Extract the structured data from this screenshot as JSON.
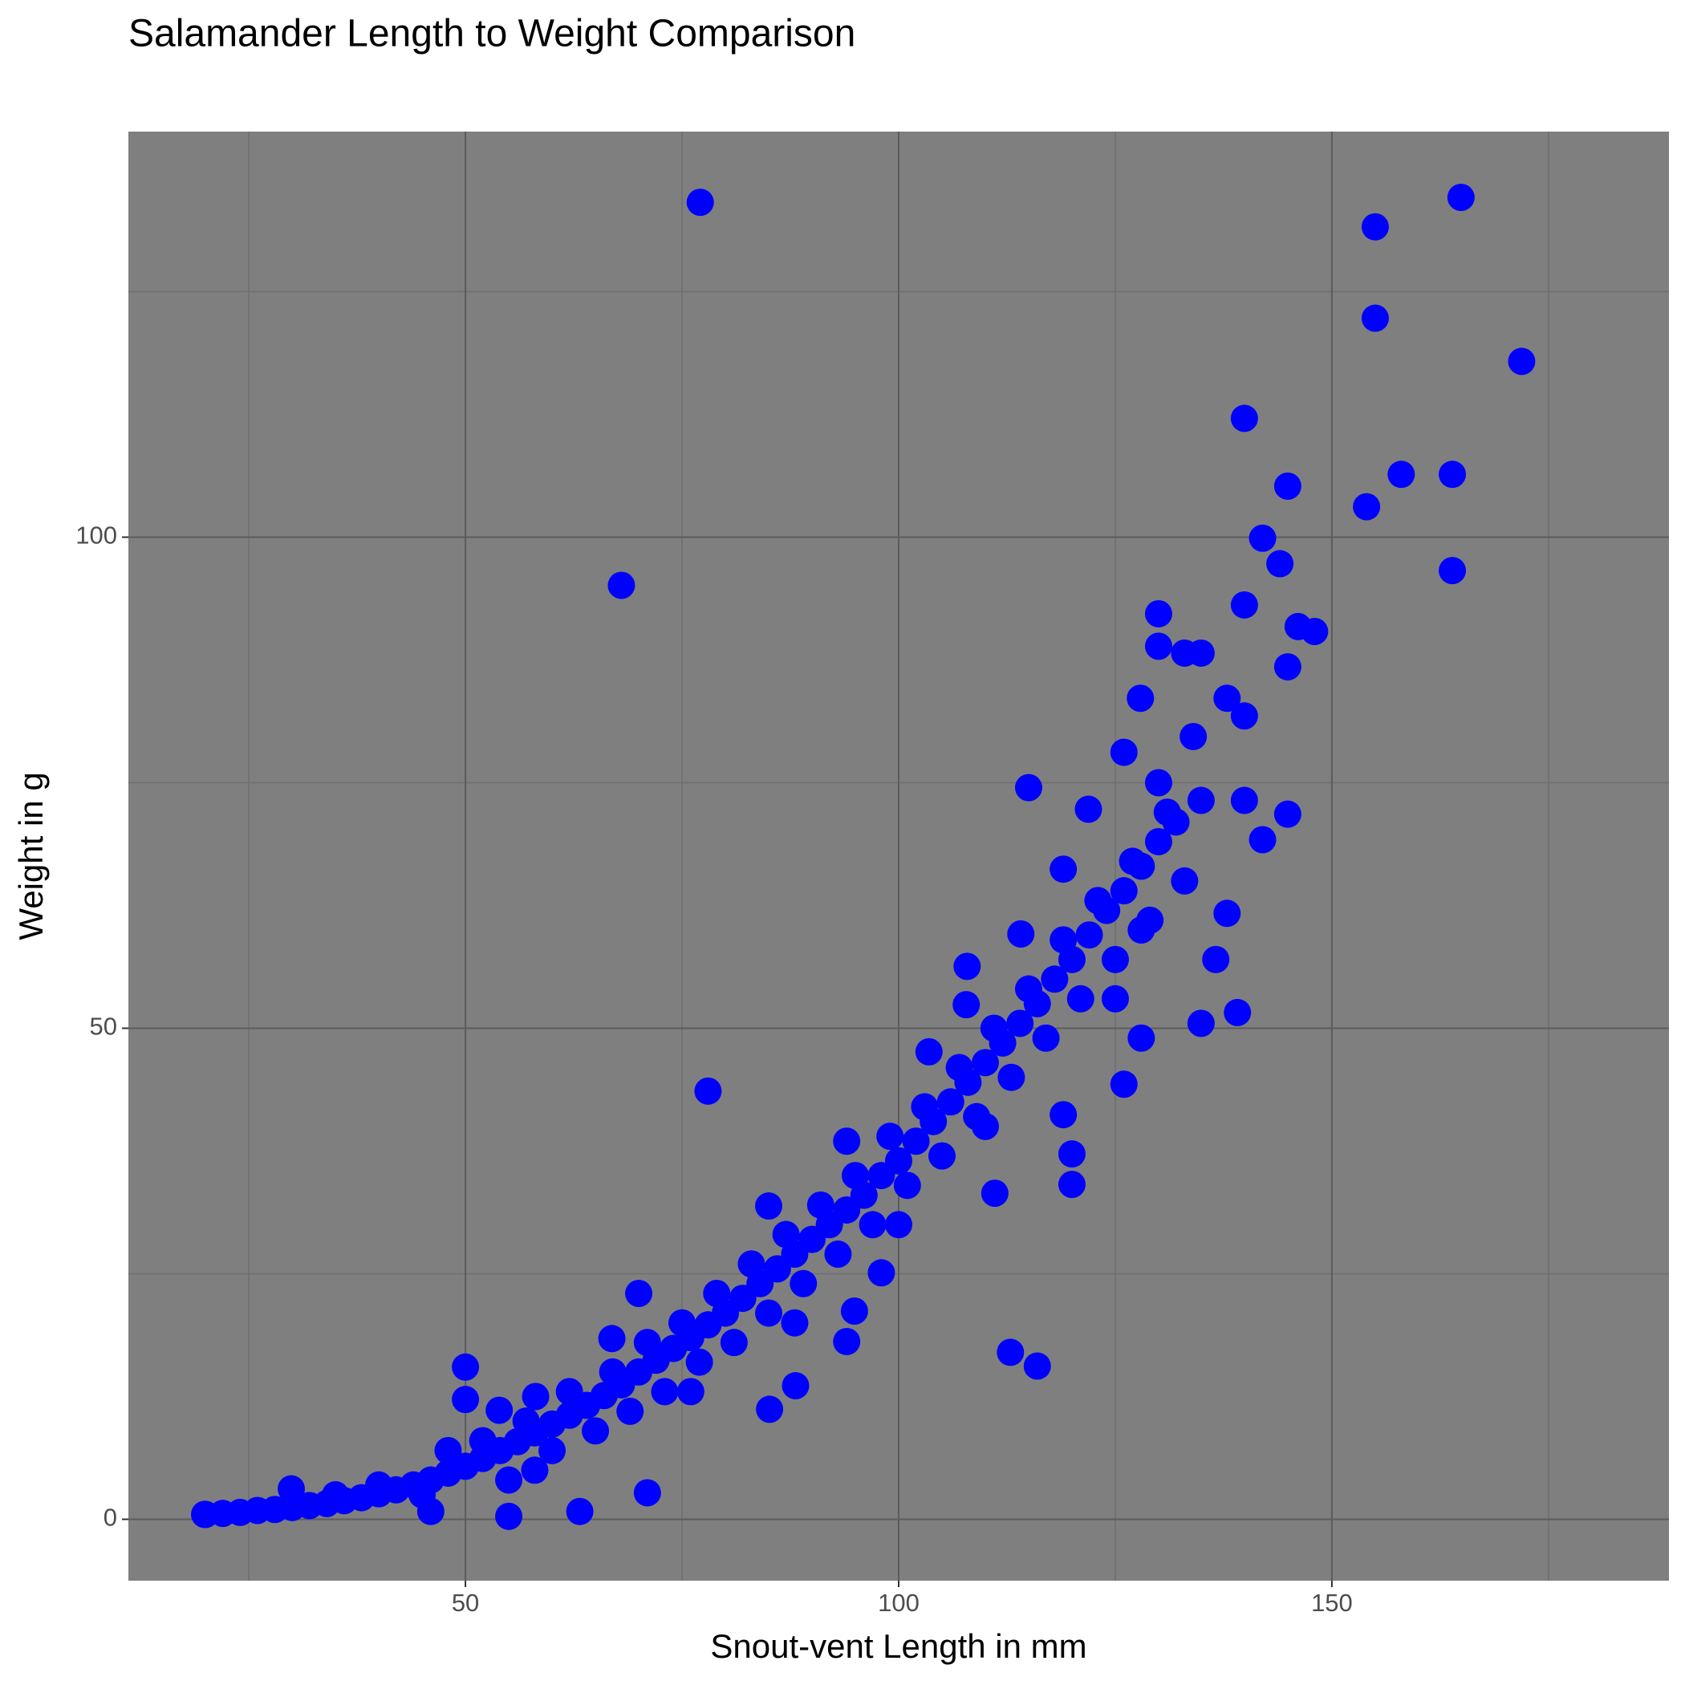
{
  "chart_data": {
    "type": "scatter",
    "title": "Salamander Length to Weight Comparison",
    "x_label": "Snout-vent Length in mm",
    "y_label": "Weight in g",
    "xlim": [
      11.1,
      188.9
    ],
    "ylim": [
      -6.25,
      141.3
    ],
    "xticks": [
      50,
      100,
      150
    ],
    "yticks": [
      0,
      50,
      100
    ],
    "grid": true,
    "series": [
      {
        "color": "#0000ff",
        "x": [
          77.1,
          164.9,
          155.0,
          155.0,
          171.9,
          139.9,
          144.9,
          158.0,
          163.9,
          154.0,
          163.9,
          68.0,
          142.0,
          144.0,
          78.0,
          112.9,
          116.0,
          115.0,
          130.0,
          130.0,
          139.9,
          148.0,
          146.1,
          144.9,
          127.9,
          126.0,
          134.9,
          139.9,
          144.9,
          142.0,
          137.9,
          139.9,
          134.0,
          133.0,
          134.9,
          137.9,
          139.1,
          134.9,
          136.6,
          128.0,
          126.0,
          119.0,
          120.0,
          120.0,
          111.1,
          114.1,
          121.9,
          119.0,
          107.8,
          107.9,
          103.5,
          94.0,
          85.0,
          70.0,
          66.9,
          50.0,
          50.0,
          71.0,
          63.2,
          55.0,
          85.1,
          88.1,
          94.0,
          94.9,
          98.0,
          53.9,
          58.1,
          46.0,
          29.9,
          19.9,
          20,
          22,
          24,
          26,
          28,
          30,
          32,
          34,
          36,
          38,
          40,
          42,
          44,
          46,
          48,
          50,
          52,
          54,
          56,
          58,
          60,
          62,
          64,
          66,
          68,
          70,
          72,
          74,
          76,
          78,
          80,
          82,
          84,
          86,
          88,
          90,
          92,
          94,
          96,
          98,
          100,
          102,
          104,
          106,
          108,
          110,
          112,
          114,
          116,
          118,
          120,
          122,
          124,
          126,
          128,
          130,
          132,
          52,
          55,
          57,
          60,
          62,
          65,
          67,
          69,
          71,
          73,
          75,
          77,
          79,
          81,
          83,
          85,
          87,
          89,
          91,
          93,
          95,
          97,
          99,
          101,
          103,
          105,
          107,
          109,
          111,
          113,
          115,
          117,
          119,
          121,
          123,
          125,
          127,
          129,
          131,
          133,
          45,
          40,
          35,
          48,
          58,
          76,
          88,
          100,
          110,
          125,
          130,
          128
        ],
        "y": [
          134.1,
          134.6,
          131.6,
          122.3,
          117.9,
          112.1,
          105.2,
          106.4,
          106.4,
          103.1,
          96.6,
          95.1,
          99.9,
          97.3,
          43.6,
          17.0,
          15.6,
          74.5,
          92.2,
          88.9,
          93.1,
          90.4,
          90.9,
          86.8,
          83.6,
          78.1,
          73.2,
          73.2,
          71.8,
          69.2,
          83.6,
          81.8,
          79.7,
          88.2,
          88.2,
          61.7,
          51.6,
          50.5,
          57.0,
          49.0,
          44.3,
          41.2,
          37.2,
          34.1,
          33.2,
          59.6,
          72.3,
          66.2,
          52.4,
          56.3,
          47.6,
          38.5,
          31.9,
          23.0,
          18.4,
          15.5,
          12.2,
          2.7,
          0.8,
          0.3,
          11.2,
          13.6,
          18.1,
          21.2,
          25.1,
          11.1,
          12.5,
          0.8,
          3.1,
          0.5,
          0.5,
          0.6,
          0.7,
          0.9,
          1.0,
          1.2,
          1.4,
          1.6,
          1.9,
          2.2,
          2.6,
          3.0,
          3.5,
          4.0,
          4.7,
          5.4,
          6.2,
          7.0,
          7.9,
          8.8,
          9.7,
          10.6,
          11.6,
          12.6,
          13.7,
          15,
          16.2,
          17.4,
          18.5,
          19.8,
          21,
          22.5,
          24,
          25.5,
          27,
          28.5,
          30,
          31.5,
          33,
          35,
          36.5,
          38.5,
          40.5,
          42.5,
          44.5,
          46.5,
          48.5,
          50.5,
          52.5,
          55,
          57,
          59.5,
          62,
          64,
          66.5,
          69,
          71,
          8,
          4,
          10,
          7,
          13,
          9,
          15,
          11,
          18,
          13,
          20,
          16,
          23,
          18,
          26,
          21,
          29,
          24,
          32,
          27,
          35,
          30,
          39,
          34,
          42,
          37,
          46,
          41,
          50,
          45,
          54,
          49,
          59,
          53,
          63,
          57,
          67,
          61,
          72,
          65,
          2.5,
          3.5,
          2.5,
          7,
          5,
          13,
          20,
          30,
          40,
          53,
          75,
          60
        ]
      }
    ]
  }
}
